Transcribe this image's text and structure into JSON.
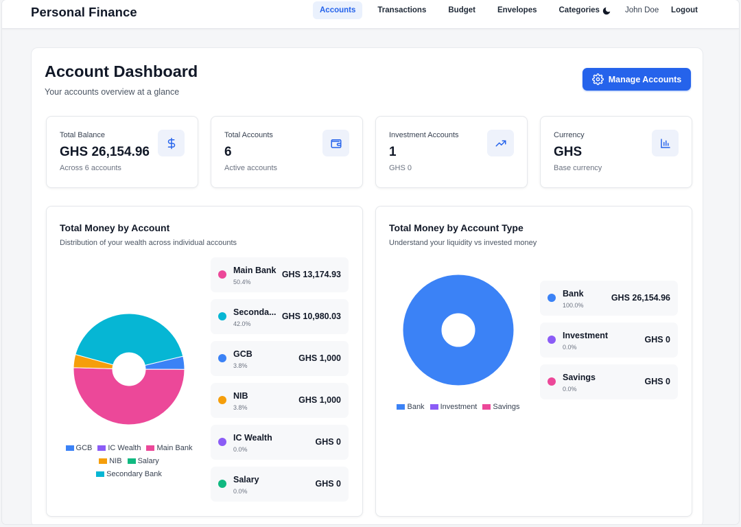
{
  "app": {
    "brand": "Personal Finance"
  },
  "nav": {
    "links": [
      {
        "label": "Accounts",
        "active": true
      },
      {
        "label": "Transactions"
      },
      {
        "label": "Budget"
      },
      {
        "label": "Envelopes"
      },
      {
        "label": "Categories"
      }
    ],
    "theme_icon": "moon-icon",
    "user": "John Doe",
    "logout": "Logout"
  },
  "header": {
    "title": "Account Dashboard",
    "subtitle": "Your accounts overview at a glance",
    "manage_button": "Manage Accounts"
  },
  "stats": [
    {
      "label": "Total Balance",
      "value": "GHS 26,154.96",
      "note": "Across 6 accounts",
      "icon": "dollar-icon"
    },
    {
      "label": "Total Accounts",
      "value": "6",
      "note": "Active accounts",
      "icon": "wallet-icon"
    },
    {
      "label": "Investment Accounts",
      "value": "1",
      "note": "GHS 0",
      "icon": "trending-up-icon"
    },
    {
      "label": "Currency",
      "value": "GHS",
      "note": "Base currency",
      "icon": "bar-chart-icon"
    }
  ],
  "by_account": {
    "title": "Total Money by Account",
    "subtitle": "Distribution of your wealth across individual accounts",
    "items": [
      {
        "name": "Main Bank",
        "pct": "50.4%",
        "amount": "GHS 13,174.93",
        "color": "#ec4899"
      },
      {
        "name": "Seconda...",
        "pct": "42.0%",
        "amount": "GHS 10,980.03",
        "color": "#06b6d4"
      },
      {
        "name": "GCB",
        "pct": "3.8%",
        "amount": "GHS 1,000",
        "color": "#3b82f6"
      },
      {
        "name": "NIB",
        "pct": "3.8%",
        "amount": "GHS 1,000",
        "color": "#f59e0b"
      },
      {
        "name": "IC Wealth",
        "pct": "0.0%",
        "amount": "GHS 0",
        "color": "#8b5cf6"
      },
      {
        "name": "Salary",
        "pct": "0.0%",
        "amount": "GHS 0",
        "color": "#10b981"
      }
    ],
    "legend": [
      {
        "label": "GCB",
        "color": "#3b82f6"
      },
      {
        "label": "IC Wealth",
        "color": "#8b5cf6"
      },
      {
        "label": "Main Bank",
        "color": "#ec4899"
      },
      {
        "label": "NIB",
        "color": "#f59e0b"
      },
      {
        "label": "Salary",
        "color": "#10b981"
      },
      {
        "label": "Secondary Bank",
        "color": "#06b6d4"
      }
    ]
  },
  "by_type": {
    "title": "Total Money by Account Type",
    "subtitle": "Understand your liquidity vs invested money",
    "items": [
      {
        "name": "Bank",
        "pct": "100.0%",
        "amount": "GHS 26,154.96",
        "color": "#3b82f6"
      },
      {
        "name": "Investment",
        "pct": "0.0%",
        "amount": "GHS 0",
        "color": "#8b5cf6"
      },
      {
        "name": "Savings",
        "pct": "0.0%",
        "amount": "GHS 0",
        "color": "#ec4899"
      }
    ],
    "legend": [
      {
        "label": "Bank",
        "color": "#3b82f6"
      },
      {
        "label": "Investment",
        "color": "#8b5cf6"
      },
      {
        "label": "Savings",
        "color": "#ec4899"
      }
    ]
  },
  "chart_data": [
    {
      "type": "pie",
      "categories": [
        "GCB",
        "IC Wealth",
        "Main Bank",
        "NIB",
        "Salary",
        "Secondary Bank"
      ],
      "values": [
        1000,
        0,
        13174.93,
        1000,
        0,
        10980.03
      ],
      "colors": [
        "#3b82f6",
        "#8b5cf6",
        "#ec4899",
        "#f59e0b",
        "#10b981",
        "#06b6d4"
      ],
      "legend": "bottom"
    },
    {
      "type": "pie",
      "categories": [
        "Bank",
        "Investment",
        "Savings"
      ],
      "values": [
        26154.96,
        0,
        0
      ],
      "colors": [
        "#3b82f6",
        "#8b5cf6",
        "#ec4899"
      ],
      "legend": "bottom"
    }
  ]
}
